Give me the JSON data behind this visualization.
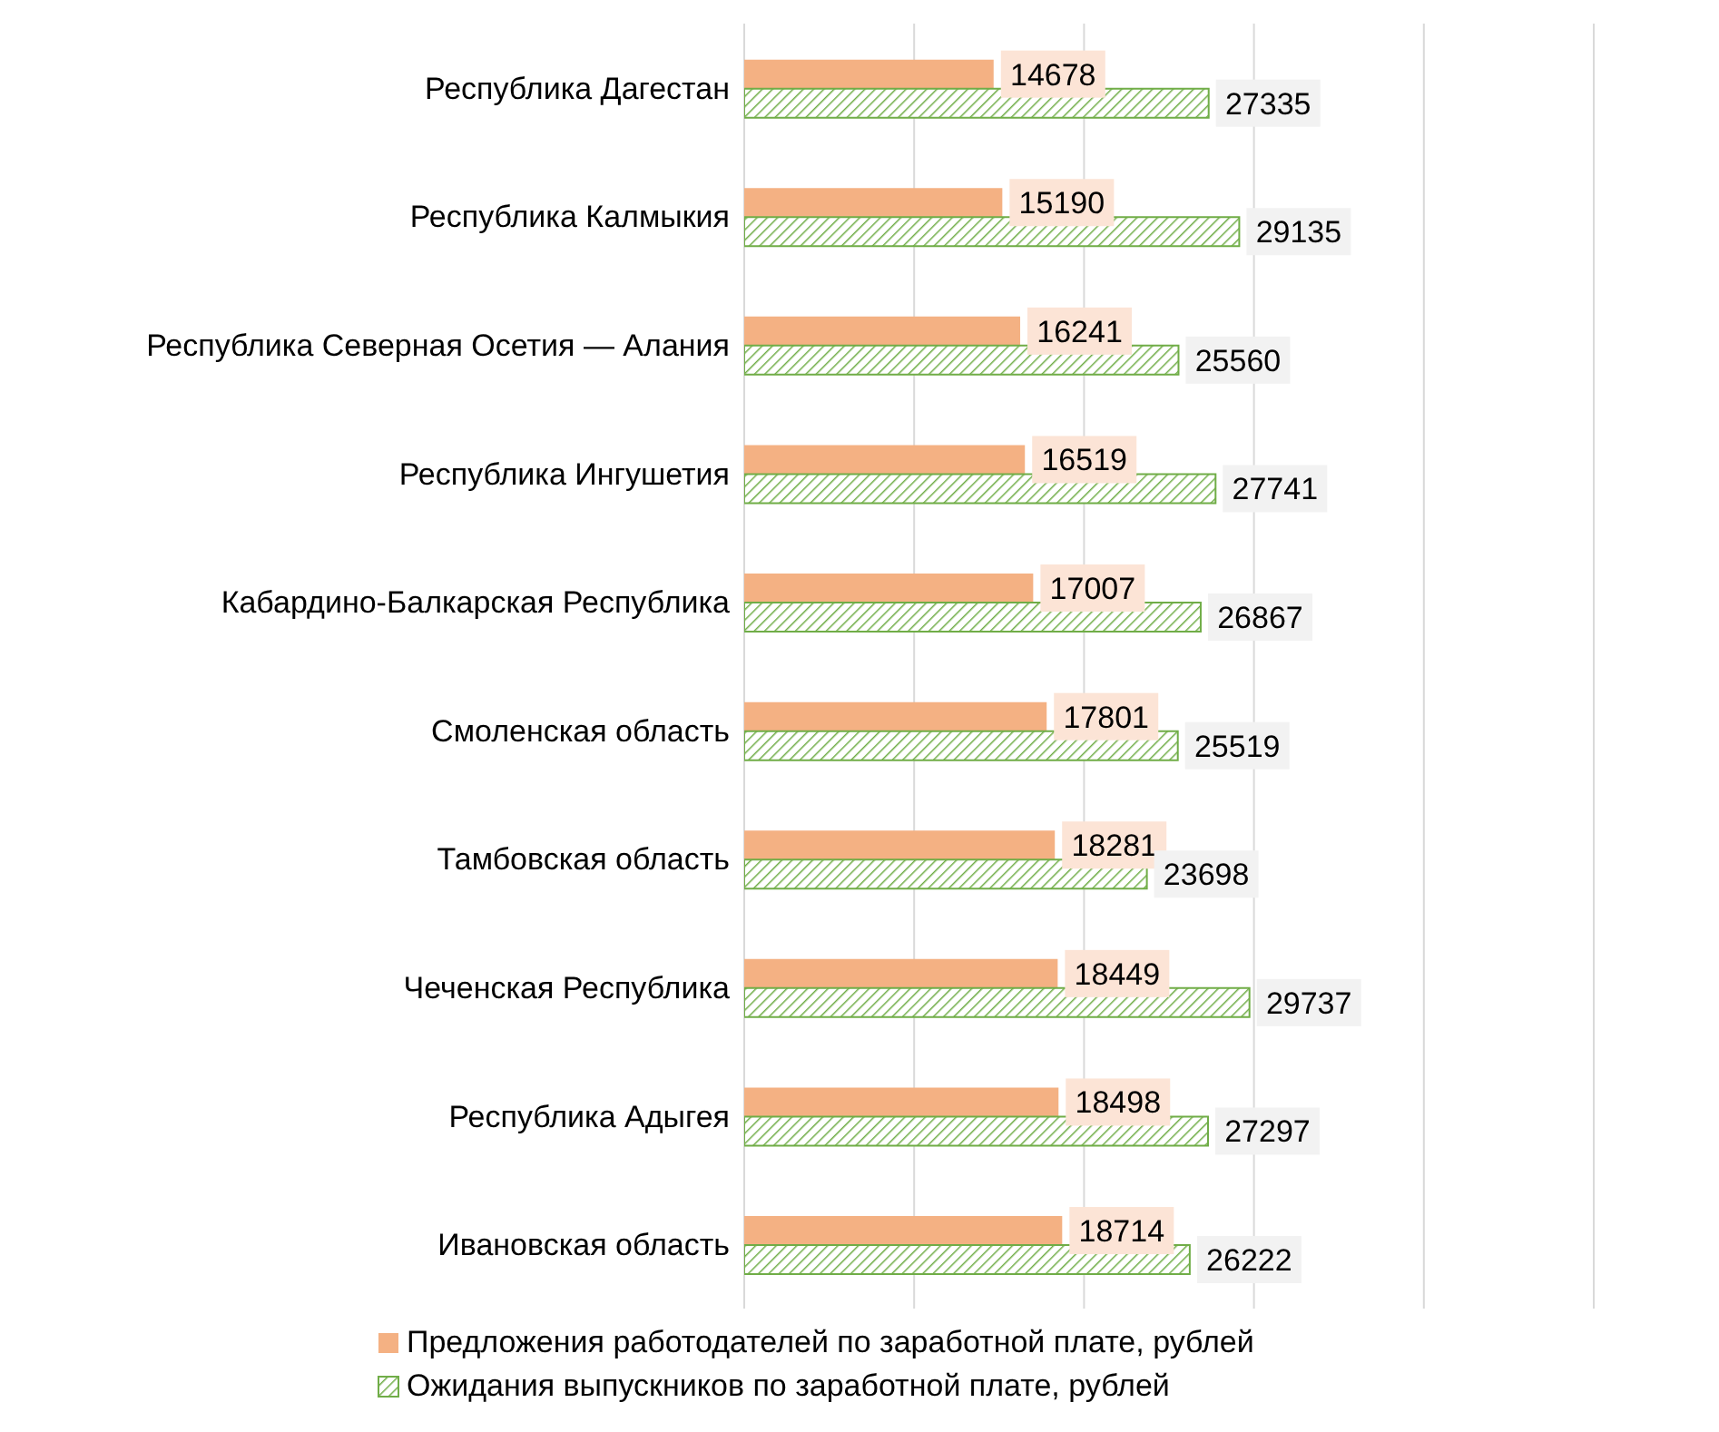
{
  "chart_data": {
    "type": "bar",
    "orientation": "horizontal",
    "categories": [
      "Республика Дагестан",
      "Республика Калмыкия",
      "Республика Северная Осетия — Алания",
      "Республика Ингушетия",
      "Кабардино-Балкарская Республика",
      "Смоленская область",
      "Тамбовская область",
      "Чеченская Республика",
      "Республика Адыгея",
      "Ивановская область"
    ],
    "series": [
      {
        "name": "Предложения работодателей по заработной плате, рублей",
        "color": "#f4b183",
        "values": [
          14678,
          15190,
          16241,
          16519,
          17007,
          17801,
          18281,
          18449,
          18498,
          18714
        ]
      },
      {
        "name": "Ожидания выпускников по заработной плате, рублей",
        "color": "#70ad47",
        "values": [
          27335,
          29135,
          25560,
          27741,
          26867,
          25519,
          23698,
          29737,
          27297,
          26222
        ]
      }
    ],
    "xlim": [
      0,
      50000
    ],
    "xticks": [
      {
        "value": 0,
        "label": null
      },
      {
        "value": 10000,
        "label": null
      },
      {
        "value": 20000,
        "label": null
      },
      {
        "value": 30000,
        "label": null
      },
      {
        "value": 40000,
        "label": null
      },
      {
        "value": 50000,
        "label": null
      }
    ],
    "tick_labels": "y",
    "grid": "x",
    "legend": "bottom",
    "data_labels": true
  }
}
